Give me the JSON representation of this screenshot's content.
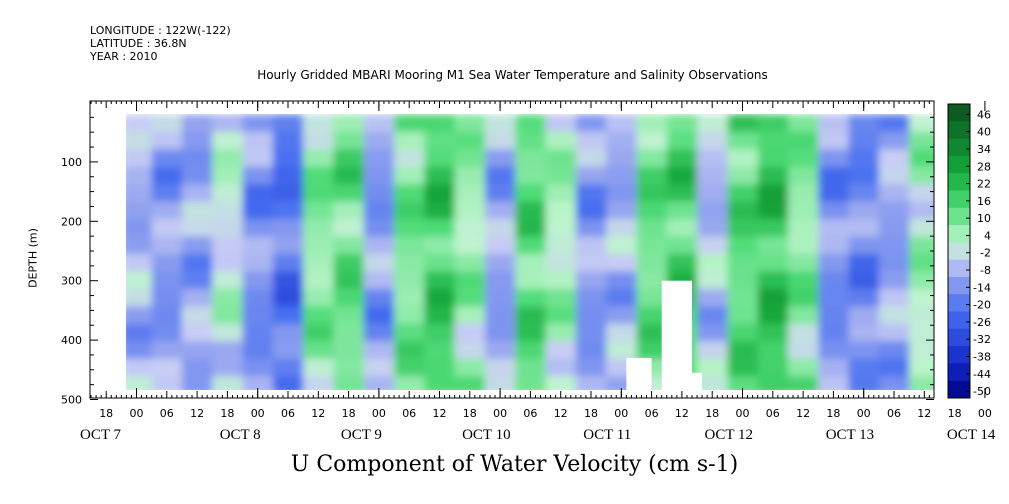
{
  "header": {
    "longitude": "LONGITUDE : 122W(-122)",
    "latitude": "LATITUDE : 36.8N",
    "year": "YEAR : 2010"
  },
  "chart_data": {
    "type": "heatmap",
    "title": "Hourly Gridded MBARI Mooring M1 Sea Water Temperature and Salinity Observations",
    "xlabel": "U Component of Water Velocity (cm s-1)",
    "ylabel": "DEPTH (m)",
    "y_ticks": [
      100,
      200,
      300,
      400,
      500
    ],
    "ylim": [
      500,
      10
    ],
    "y_data_range": [
      20,
      490
    ],
    "x_hour_ticks": [
      "18",
      "00",
      "06",
      "12",
      "18",
      "00",
      "06",
      "12",
      "18",
      "00",
      "06",
      "12",
      "18",
      "00",
      "06",
      "12",
      "18",
      "00",
      "06",
      "12",
      "18",
      "00",
      "06",
      "12",
      "18",
      "00",
      "06",
      "12",
      "18",
      "00",
      "06",
      "12"
    ],
    "x_day_labels": [
      "OCT  7",
      "OCT  8",
      "OCT  9",
      "OCT 10",
      "OCT 11",
      "OCT 12",
      "OCT 13",
      "OCT 14"
    ],
    "colorbar_labels": [
      "46",
      "40",
      "34",
      "28",
      "22",
      "16",
      "10",
      "4",
      "-2",
      "-8",
      "-14",
      "-20",
      "-26",
      "-32",
      "-38",
      "-44",
      "-50"
    ],
    "colorbar_range": [
      -50,
      52
    ],
    "colors": {
      "strong_negative": "#0a1a9e",
      "negative": "#5a78f0",
      "near_zero": "#c8ccf5",
      "positive": "#5ee08a",
      "strong_positive": "#0b5a1c"
    },
    "columns_mean_u": [
      {
        "time": "OCT 7 00",
        "u": -6
      },
      {
        "time": "OCT 7 06",
        "u": -10
      },
      {
        "time": "OCT 7 12",
        "u": -8
      },
      {
        "time": "OCT 7 18",
        "u": 2
      },
      {
        "time": "OCT 8 00",
        "u": -12
      },
      {
        "time": "OCT 8 06",
        "u": -18
      },
      {
        "time": "OCT 8 12",
        "u": 10
      },
      {
        "time": "OCT 8 18",
        "u": 14
      },
      {
        "time": "OCT 9 00",
        "u": -10
      },
      {
        "time": "OCT 9 06",
        "u": 12
      },
      {
        "time": "OCT 9 12",
        "u": 20
      },
      {
        "time": "OCT 9 18",
        "u": 8
      },
      {
        "time": "OCT 10 00",
        "u": -8
      },
      {
        "time": "OCT 10 06",
        "u": 16
      },
      {
        "time": "OCT 10 12",
        "u": 6
      },
      {
        "time": "OCT 10 18",
        "u": -10
      },
      {
        "time": "OCT 11 00",
        "u": -6
      },
      {
        "time": "OCT 11 06",
        "u": 14
      },
      {
        "time": "OCT 11 12",
        "u": 18
      },
      {
        "time": "OCT 11 18",
        "u": -4
      },
      {
        "time": "OCT 12 00",
        "u": 16
      },
      {
        "time": "OCT 12 06",
        "u": 22
      },
      {
        "time": "OCT 12 12",
        "u": 10
      },
      {
        "time": "OCT 12 18",
        "u": -12
      },
      {
        "time": "OCT 13 00",
        "u": -14
      },
      {
        "time": "OCT 13 06",
        "u": -8
      },
      {
        "time": "OCT 13 12",
        "u": 6
      },
      {
        "time": "OCT 13 18",
        "u": -4
      },
      {
        "time": "OCT 14 00",
        "u": -18
      },
      {
        "time": "OCT 14 06",
        "u": -10
      },
      {
        "time": "OCT 14 12",
        "u": 2
      }
    ]
  }
}
